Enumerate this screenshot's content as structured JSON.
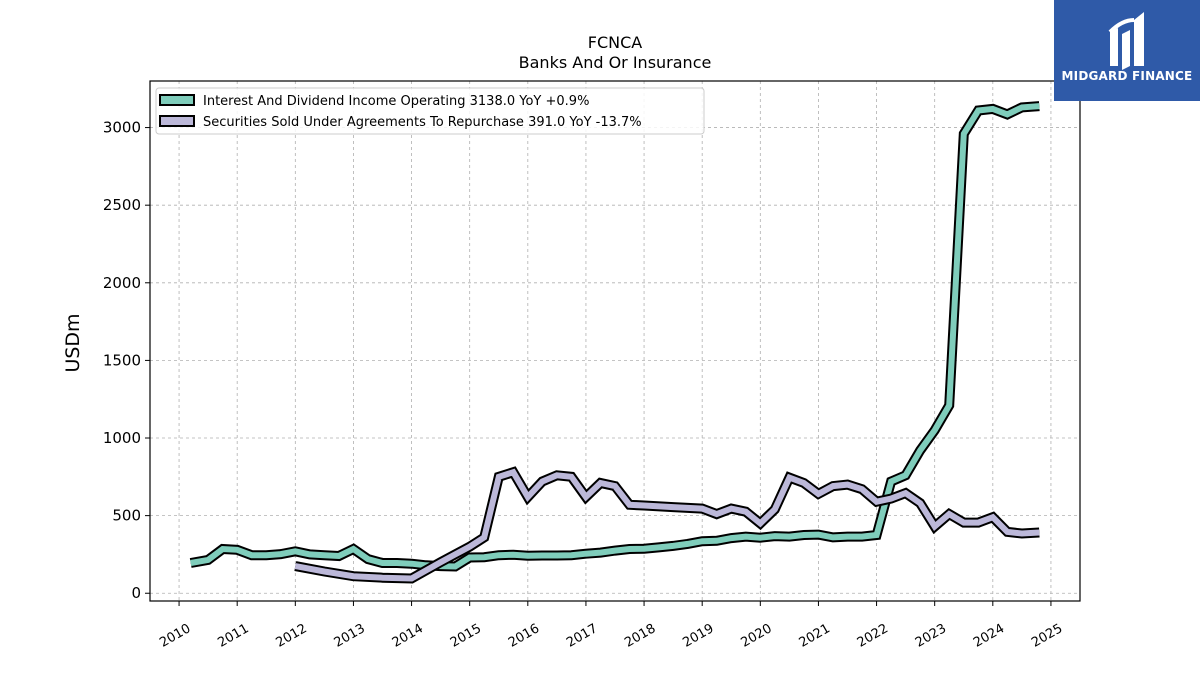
{
  "chart_data": {
    "type": "line",
    "title": "FCNCA",
    "subtitle": "Banks And Or Insurance",
    "ylabel": "USDm",
    "xlabel": "",
    "ylim": [
      -50,
      3300
    ],
    "xlim": [
      2009.5,
      2025.5
    ],
    "grid": true,
    "legend_position": "top-left",
    "x_ticks": [
      2010,
      2011,
      2012,
      2013,
      2014,
      2015,
      2016,
      2017,
      2018,
      2019,
      2020,
      2021,
      2022,
      2023,
      2024,
      2025
    ],
    "x_tick_labels": [
      "2010",
      "2011",
      "2012",
      "2013",
      "2014",
      "2015",
      "2016",
      "2017",
      "2018",
      "2019",
      "2020",
      "2021",
      "2022",
      "2023",
      "2024",
      "2025"
    ],
    "y_ticks": [
      0,
      500,
      1000,
      1500,
      2000,
      2500,
      3000
    ],
    "y_tick_labels": [
      "0",
      "500",
      "1000",
      "1500",
      "2000",
      "2500",
      "3000"
    ],
    "series": [
      {
        "name": "Interest And Dividend Income Operating",
        "legend_label": "Interest And Dividend Income Operating  3138.0 YoY +0.9%",
        "color": "#7fcdbb",
        "x": [
          2010.2,
          2010.5,
          2010.75,
          2011.0,
          2011.25,
          2011.5,
          2011.75,
          2012.0,
          2012.25,
          2012.5,
          2012.75,
          2013.0,
          2013.25,
          2013.5,
          2013.75,
          2014.0,
          2014.25,
          2014.5,
          2014.75,
          2015.0,
          2015.25,
          2015.5,
          2015.75,
          2016.0,
          2016.25,
          2016.5,
          2016.75,
          2017.0,
          2017.25,
          2017.5,
          2017.75,
          2018.0,
          2018.25,
          2018.5,
          2018.75,
          2019.0,
          2019.25,
          2019.5,
          2019.75,
          2020.0,
          2020.25,
          2020.5,
          2020.75,
          2021.0,
          2021.25,
          2021.5,
          2021.75,
          2022.0,
          2022.25,
          2022.5,
          2022.75,
          2023.0,
          2023.25,
          2023.5,
          2023.75,
          2024.0,
          2024.25,
          2024.5,
          2024.8
        ],
        "y": [
          195,
          215,
          285,
          280,
          245,
          245,
          252,
          270,
          250,
          245,
          240,
          285,
          220,
          195,
          195,
          190,
          180,
          175,
          172,
          230,
          232,
          245,
          248,
          242,
          243,
          243,
          245,
          255,
          262,
          275,
          285,
          287,
          295,
          305,
          318,
          335,
          338,
          355,
          365,
          358,
          368,
          365,
          375,
          378,
          360,
          365,
          365,
          375,
          720,
          760,
          920,
          1050,
          1210,
          2960,
          3110,
          3120,
          3085,
          3130,
          3138
        ]
      },
      {
        "name": "Securities Sold Under Agreements To Repurchase",
        "legend_label": "Securities Sold Under Agreements To Repurchase  391.0 YoY -13.7%",
        "color": "#bcb8d9",
        "x": [
          2012.0,
          2012.5,
          2013.0,
          2013.5,
          2014.0,
          2014.5,
          2014.75,
          2015.0,
          2015.25,
          2015.5,
          2015.75,
          2016.0,
          2016.25,
          2016.5,
          2016.75,
          2017.0,
          2017.25,
          2017.5,
          2017.75,
          2018.0,
          2018.5,
          2019.0,
          2019.25,
          2019.5,
          2019.75,
          2020.0,
          2020.25,
          2020.5,
          2020.75,
          2021.0,
          2021.25,
          2021.5,
          2021.75,
          2022.0,
          2022.25,
          2022.5,
          2022.75,
          2023.0,
          2023.25,
          2023.5,
          2023.75,
          2024.0,
          2024.25,
          2024.5,
          2024.8
        ],
        "y": [
          175,
          140,
          110,
          100,
          95,
          200,
          250,
          300,
          360,
          750,
          780,
          620,
          720,
          760,
          750,
          620,
          710,
          690,
          570,
          565,
          555,
          545,
          510,
          545,
          525,
          450,
          540,
          745,
          710,
          640,
          690,
          700,
          670,
          590,
          610,
          645,
          580,
          430,
          510,
          455,
          455,
          490,
          395,
          385,
          391
        ]
      }
    ]
  },
  "logo": {
    "brand_text": "MIDGARD FINANCE",
    "bg_color": "#2f5aa8"
  }
}
